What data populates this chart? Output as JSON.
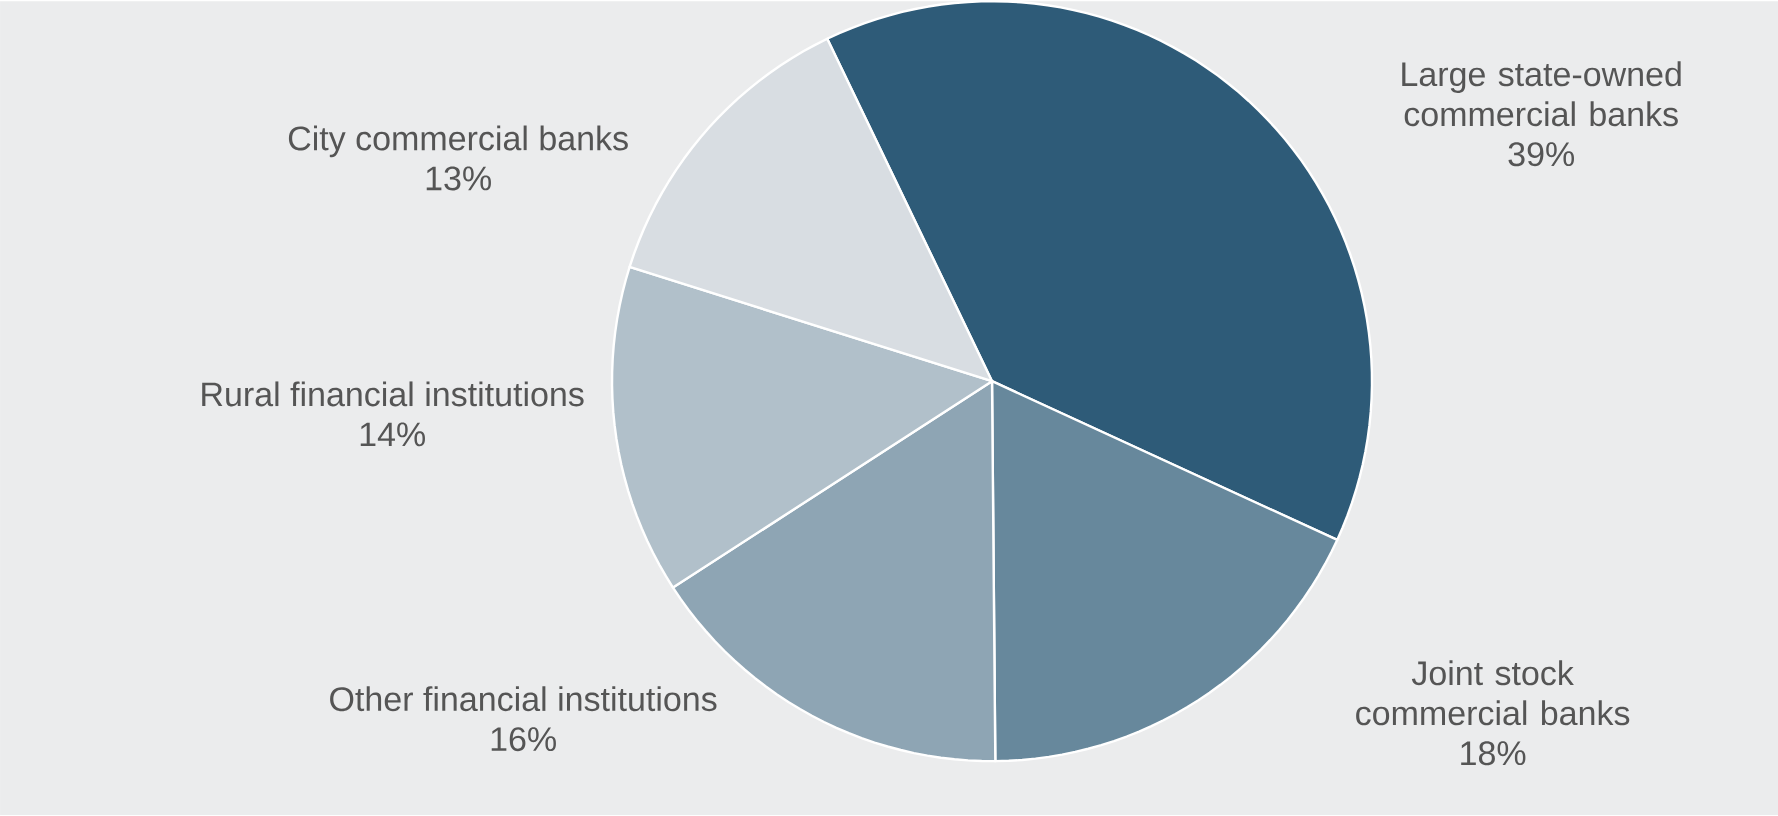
{
  "chart_data": {
    "type": "pie",
    "categories": [
      "Large state-owned commercial banks",
      "Joint stock commercial banks",
      "Other financial institutions",
      "Rural financial institutions",
      "City commercial banks"
    ],
    "values": [
      39,
      18,
      16,
      14,
      13
    ],
    "value_labels": [
      "39%",
      "18%",
      "16%",
      "14%",
      "13%"
    ],
    "colors": [
      "#2e5b78",
      "#67889c",
      "#8ea5b4",
      "#b1c0ca",
      "#d8dde2"
    ]
  }
}
